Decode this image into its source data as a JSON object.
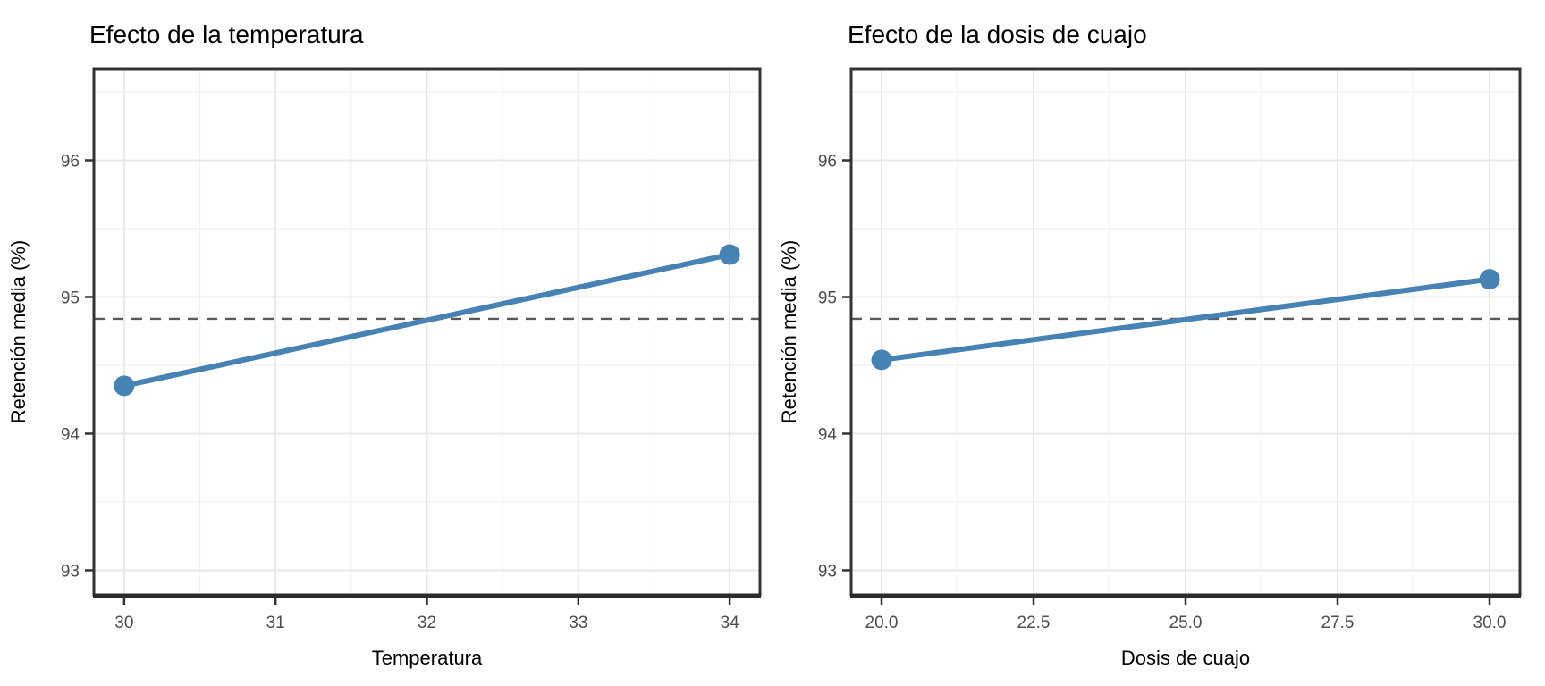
{
  "page": {
    "background": "#ffffff"
  },
  "style": {
    "series_color": "#4682B4",
    "reference_line_color": "#595959",
    "grid_major_color": "#e8e8e8",
    "grid_minor_color": "#f1f1f1",
    "panel_border_color": "#333333",
    "axis_line_color": "#2b2b2b",
    "tick_color": "#333333",
    "tick_label_color": "#4d4d4d",
    "text_color": "#000000",
    "panel_background": "#ffffff"
  },
  "chart_data": [
    {
      "type": "line",
      "title": "Efecto de la temperatura",
      "xlabel": "Temperatura",
      "ylabel": "Retención media (%)",
      "x": [
        30,
        34
      ],
      "y": [
        94.35,
        95.31
      ],
      "reference_line_y": 94.84,
      "x_ticks": {
        "values": [
          30,
          31,
          32,
          33,
          34
        ],
        "labels": [
          "30",
          "31",
          "32",
          "33",
          "34"
        ]
      },
      "x_minor": [
        30.5,
        31.5,
        32.5,
        33.5
      ],
      "y_ticks": {
        "values": [
          93,
          94,
          95,
          96
        ],
        "labels": [
          "93",
          "94",
          "95",
          "96"
        ]
      },
      "y_minor": [
        93.5,
        94.5,
        95.5,
        96.5
      ],
      "xlim": [
        29.8,
        34.2
      ],
      "ylim": [
        92.82,
        96.67
      ],
      "grid": true,
      "legend": "none",
      "marker_points": [
        {
          "x": 30,
          "y": 94.35
        },
        {
          "x": 34,
          "y": 95.31
        }
      ]
    },
    {
      "type": "line",
      "title": "Efecto de la dosis de cuajo",
      "xlabel": "Dosis de cuajo",
      "ylabel": "Retención media (%)",
      "x": [
        20,
        30
      ],
      "y": [
        94.54,
        95.13
      ],
      "reference_line_y": 94.84,
      "x_ticks": {
        "values": [
          20,
          22.5,
          25,
          27.5,
          30
        ],
        "labels": [
          "20.0",
          "22.5",
          "25.0",
          "27.5",
          "30.0"
        ]
      },
      "x_minor": [
        21.25,
        23.75,
        26.25,
        28.75
      ],
      "y_ticks": {
        "values": [
          93,
          94,
          95,
          96
        ],
        "labels": [
          "93",
          "94",
          "95",
          "96"
        ]
      },
      "y_minor": [
        93.5,
        94.5,
        95.5,
        96.5
      ],
      "xlim": [
        19.5,
        30.5
      ],
      "ylim": [
        92.82,
        96.67
      ],
      "grid": true,
      "legend": "none",
      "marker_points": [
        {
          "x": 20,
          "y": 94.54
        },
        {
          "x": 30,
          "y": 95.13
        }
      ]
    }
  ]
}
